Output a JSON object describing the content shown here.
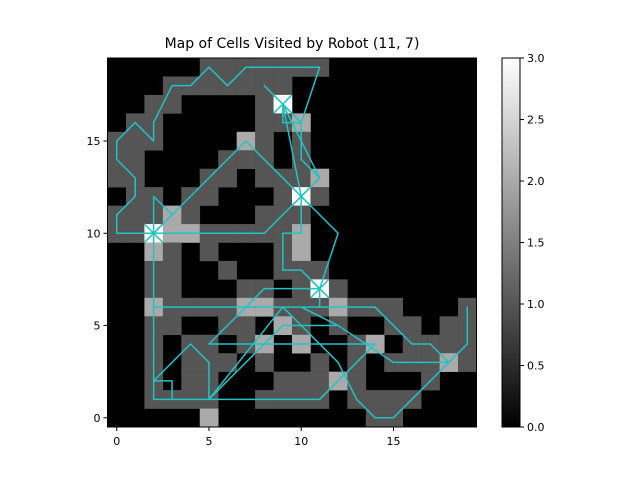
{
  "chart_data": {
    "type": "heatmap",
    "title": "Map of Cells Visited by Robot (11, 7)",
    "xlabel": "",
    "ylabel": "",
    "grid_size": [
      20,
      20
    ],
    "x_ticks": [
      0,
      5,
      10,
      15
    ],
    "y_ticks": [
      0,
      5,
      10,
      15
    ],
    "origin": "lower",
    "colormap": "gray",
    "colorbar": {
      "min": 0,
      "max": 3,
      "ticks": [
        "0.0",
        "0.5",
        "1.0",
        "1.5",
        "2.0",
        "2.5",
        "3.0"
      ]
    },
    "path_color": "#21c4c4",
    "cells": [
      [
        5,
        19,
        1
      ],
      [
        6,
        19,
        1
      ],
      [
        7,
        19,
        1
      ],
      [
        8,
        19,
        1
      ],
      [
        9,
        19,
        1
      ],
      [
        10,
        19,
        1
      ],
      [
        11,
        19,
        1
      ],
      [
        3,
        18,
        1
      ],
      [
        4,
        18,
        1
      ],
      [
        5,
        18,
        1
      ],
      [
        6,
        18,
        1
      ],
      [
        7,
        18,
        1
      ],
      [
        8,
        18,
        1
      ],
      [
        9,
        18,
        1
      ],
      [
        2,
        17,
        1
      ],
      [
        3,
        17,
        1
      ],
      [
        8,
        17,
        1
      ],
      [
        9,
        17,
        3
      ],
      [
        1,
        16,
        1
      ],
      [
        2,
        16,
        1
      ],
      [
        8,
        16,
        1
      ],
      [
        9,
        16,
        1
      ],
      [
        10,
        16,
        2
      ],
      [
        0,
        15,
        1
      ],
      [
        1,
        15,
        1
      ],
      [
        2,
        15,
        1
      ],
      [
        7,
        15,
        2
      ],
      [
        8,
        15,
        1
      ],
      [
        10,
        15,
        1
      ],
      [
        0,
        14,
        1
      ],
      [
        1,
        14,
        1
      ],
      [
        6,
        14,
        1
      ],
      [
        7,
        14,
        1
      ],
      [
        8,
        14,
        1
      ],
      [
        10,
        14,
        1
      ],
      [
        0,
        13,
        1
      ],
      [
        1,
        13,
        1
      ],
      [
        5,
        13,
        1
      ],
      [
        6,
        13,
        1
      ],
      [
        8,
        13,
        1
      ],
      [
        9,
        13,
        1
      ],
      [
        10,
        13,
        1
      ],
      [
        11,
        13,
        2
      ],
      [
        1,
        12,
        1
      ],
      [
        2,
        12,
        1
      ],
      [
        4,
        12,
        1
      ],
      [
        5,
        12,
        1
      ],
      [
        9,
        12,
        1
      ],
      [
        10,
        12,
        3
      ],
      [
        11,
        12,
        1
      ],
      [
        0,
        11,
        1
      ],
      [
        1,
        11,
        1
      ],
      [
        2,
        11,
        1
      ],
      [
        3,
        11,
        2
      ],
      [
        4,
        11,
        1
      ],
      [
        8,
        11,
        1
      ],
      [
        9,
        11,
        1
      ],
      [
        10,
        11,
        1
      ],
      [
        0,
        10,
        1
      ],
      [
        1,
        10,
        1
      ],
      [
        2,
        10,
        3
      ],
      [
        3,
        10,
        2
      ],
      [
        4,
        10,
        2
      ],
      [
        5,
        10,
        1
      ],
      [
        6,
        10,
        1
      ],
      [
        7,
        10,
        1
      ],
      [
        8,
        10,
        1
      ],
      [
        9,
        10,
        1
      ],
      [
        10,
        10,
        2
      ],
      [
        2,
        9,
        2
      ],
      [
        3,
        9,
        1
      ],
      [
        5,
        9,
        1
      ],
      [
        9,
        9,
        1
      ],
      [
        10,
        9,
        2
      ],
      [
        2,
        8,
        1
      ],
      [
        3,
        8,
        1
      ],
      [
        6,
        8,
        1
      ],
      [
        9,
        8,
        1
      ],
      [
        10,
        8,
        1
      ],
      [
        11,
        8,
        1
      ],
      [
        2,
        7,
        1
      ],
      [
        3,
        7,
        1
      ],
      [
        7,
        7,
        1
      ],
      [
        8,
        7,
        1
      ],
      [
        10,
        7,
        1
      ],
      [
        11,
        7,
        3
      ],
      [
        12,
        7,
        1
      ],
      [
        2,
        6,
        2
      ],
      [
        3,
        6,
        1
      ],
      [
        4,
        6,
        1
      ],
      [
        5,
        6,
        1
      ],
      [
        6,
        6,
        1
      ],
      [
        7,
        6,
        2
      ],
      [
        8,
        6,
        2
      ],
      [
        9,
        6,
        1
      ],
      [
        10,
        6,
        1
      ],
      [
        11,
        6,
        1
      ],
      [
        12,
        6,
        2
      ],
      [
        13,
        6,
        1
      ],
      [
        14,
        6,
        1
      ],
      [
        15,
        6,
        1
      ],
      [
        19,
        6,
        1
      ],
      [
        2,
        5,
        1
      ],
      [
        3,
        5,
        1
      ],
      [
        6,
        5,
        1
      ],
      [
        7,
        5,
        1
      ],
      [
        9,
        5,
        2
      ],
      [
        10,
        5,
        1
      ],
      [
        12,
        5,
        1
      ],
      [
        15,
        5,
        1
      ],
      [
        16,
        5,
        1
      ],
      [
        18,
        5,
        1
      ],
      [
        19,
        5,
        1
      ],
      [
        2,
        4,
        1
      ],
      [
        4,
        4,
        1
      ],
      [
        5,
        4,
        1
      ],
      [
        7,
        4,
        1
      ],
      [
        8,
        4,
        2
      ],
      [
        10,
        4,
        2
      ],
      [
        13,
        4,
        1
      ],
      [
        14,
        4,
        2
      ],
      [
        16,
        4,
        1
      ],
      [
        17,
        4,
        1
      ],
      [
        18,
        4,
        1
      ],
      [
        19,
        4,
        1
      ],
      [
        2,
        3,
        1
      ],
      [
        4,
        3,
        1
      ],
      [
        5,
        3,
        1
      ],
      [
        6,
        3,
        1
      ],
      [
        8,
        3,
        1
      ],
      [
        11,
        3,
        1
      ],
      [
        13,
        3,
        1
      ],
      [
        15,
        3,
        1
      ],
      [
        16,
        3,
        1
      ],
      [
        17,
        3,
        1
      ],
      [
        18,
        3,
        2
      ],
      [
        19,
        3,
        1
      ],
      [
        2,
        2,
        1
      ],
      [
        4,
        2,
        1
      ],
      [
        5,
        2,
        1
      ],
      [
        9,
        2,
        1
      ],
      [
        10,
        2,
        1
      ],
      [
        11,
        2,
        1
      ],
      [
        12,
        2,
        2
      ],
      [
        13,
        2,
        1
      ],
      [
        17,
        2,
        1
      ],
      [
        2,
        1,
        1
      ],
      [
        3,
        1,
        1
      ],
      [
        4,
        1,
        1
      ],
      [
        5,
        1,
        1
      ],
      [
        8,
        1,
        1
      ],
      [
        9,
        1,
        1
      ],
      [
        10,
        1,
        1
      ],
      [
        11,
        1,
        1
      ],
      [
        13,
        1,
        1
      ],
      [
        14,
        1,
        1
      ],
      [
        15,
        1,
        1
      ],
      [
        16,
        1,
        1
      ],
      [
        5,
        0,
        2
      ],
      [
        14,
        0,
        1
      ],
      [
        15,
        0,
        1
      ]
    ],
    "path": [
      [
        11,
        7
      ],
      [
        10,
        8
      ],
      [
        9,
        8
      ],
      [
        9,
        10
      ],
      [
        10,
        10
      ],
      [
        10,
        12
      ],
      [
        11,
        13
      ],
      [
        10,
        14
      ],
      [
        10,
        16
      ],
      [
        9,
        17
      ],
      [
        9,
        16
      ],
      [
        10,
        16
      ],
      [
        11,
        19
      ],
      [
        7,
        19
      ],
      [
        6,
        18
      ],
      [
        5,
        19
      ],
      [
        4,
        18
      ],
      [
        3,
        18
      ],
      [
        2,
        16
      ],
      [
        2,
        15
      ],
      [
        1,
        16
      ],
      [
        0,
        15
      ],
      [
        0,
        14
      ],
      [
        1,
        13
      ],
      [
        1,
        12
      ],
      [
        0,
        11
      ],
      [
        0,
        10
      ],
      [
        8,
        10
      ],
      [
        10,
        12
      ],
      [
        11,
        13
      ],
      [
        9,
        17
      ],
      [
        8,
        18
      ],
      [
        9,
        17
      ],
      [
        10,
        12
      ],
      [
        9,
        13
      ],
      [
        7,
        15
      ],
      [
        2,
        10
      ],
      [
        3,
        11
      ],
      [
        2,
        12
      ],
      [
        2,
        1
      ],
      [
        5,
        1
      ],
      [
        9,
        5
      ],
      [
        10,
        5
      ],
      [
        12,
        3
      ],
      [
        13,
        1
      ],
      [
        14,
        0
      ],
      [
        15,
        0
      ],
      [
        16,
        1
      ],
      [
        18,
        3
      ],
      [
        19,
        4
      ],
      [
        19,
        6
      ],
      [
        19,
        4
      ],
      [
        18,
        3
      ],
      [
        17,
        4
      ],
      [
        16,
        4
      ],
      [
        15,
        5
      ],
      [
        14,
        6
      ],
      [
        2,
        6
      ],
      [
        3,
        6
      ],
      [
        11,
        6
      ],
      [
        11,
        7
      ],
      [
        8,
        7
      ],
      [
        5,
        4
      ],
      [
        14,
        4
      ],
      [
        12,
        2
      ],
      [
        11,
        1
      ],
      [
        3,
        1
      ],
      [
        3,
        2
      ],
      [
        2,
        2
      ],
      [
        2,
        6
      ],
      [
        10,
        6
      ],
      [
        12,
        5
      ],
      [
        15,
        3
      ],
      [
        18,
        3
      ],
      [
        15,
        3
      ],
      [
        12,
        5
      ],
      [
        10,
        5
      ],
      [
        9,
        6
      ],
      [
        5,
        1
      ],
      [
        5,
        3
      ],
      [
        4,
        4
      ],
      [
        2,
        2
      ],
      [
        2,
        10
      ],
      [
        7,
        15
      ],
      [
        12,
        10
      ],
      [
        11,
        7
      ]
    ],
    "markers": [
      [
        9,
        17
      ],
      [
        10,
        12
      ],
      [
        11,
        7
      ],
      [
        2,
        10
      ]
    ]
  }
}
